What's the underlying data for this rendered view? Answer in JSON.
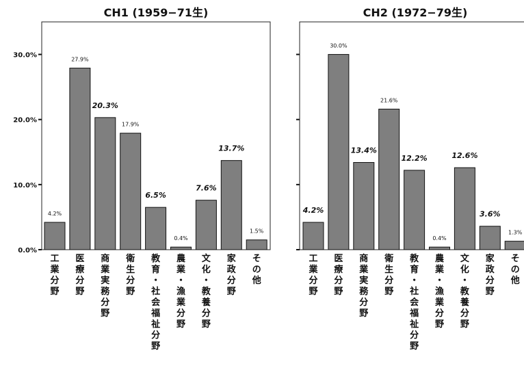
{
  "chart_data": [
    {
      "type": "bar",
      "title": "CH1 (1959−71生)",
      "categories": [
        "工業分野",
        "医療分野",
        "商業実務分野",
        "衛生分野",
        "教育・社会福祉分野",
        "農業・漁業分野",
        "文化・教養分野",
        "家政分野",
        "その他"
      ],
      "values": [
        4.2,
        27.9,
        20.3,
        17.9,
        6.5,
        0.4,
        7.6,
        13.7,
        1.5
      ],
      "value_labels": [
        "4.2%",
        "27.9%",
        "20.3%",
        "17.9%",
        "6.5%",
        "0.4%",
        "7.6%",
        "13.7%",
        "1.5%"
      ],
      "emphasized_labels": [
        false,
        false,
        true,
        false,
        true,
        false,
        true,
        true,
        false
      ],
      "y_ticks": [
        "0.0%",
        "10.0%",
        "20.0%",
        "30.0%"
      ],
      "ylim": [
        0,
        35
      ],
      "xlabel": "",
      "ylabel": "",
      "grid": false,
      "bar_color": "#7f7f7f",
      "bar_outline_color": "#111111"
    },
    {
      "type": "bar",
      "title": "CH2 (1972−79生)",
      "categories": [
        "工業分野",
        "医療分野",
        "商業実務分野",
        "衛生分野",
        "教育・社会福祉分野",
        "農業・漁業分野",
        "文化・教養分野",
        "家政分野",
        "その他"
      ],
      "values": [
        4.2,
        30.0,
        13.4,
        21.6,
        12.2,
        0.4,
        12.6,
        3.6,
        1.3
      ],
      "value_labels": [
        "4.2%",
        "30.0%",
        "13.4%",
        "21.6%",
        "12.2%",
        "0.4%",
        "12.6%",
        "3.6%",
        "1.3%"
      ],
      "emphasized_labels": [
        true,
        false,
        true,
        false,
        true,
        false,
        true,
        true,
        false
      ],
      "y_ticks": [
        "",
        "",
        "",
        ""
      ],
      "ylim": [
        0,
        35
      ],
      "xlabel": "",
      "ylabel": "",
      "grid": false,
      "bar_color": "#7f7f7f",
      "bar_outline_color": "#111111"
    }
  ]
}
